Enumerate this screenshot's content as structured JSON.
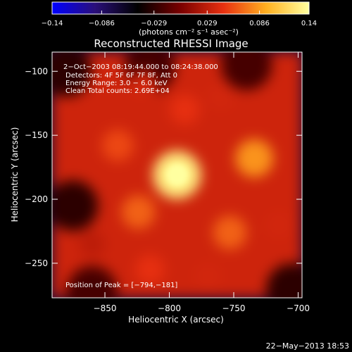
{
  "chart_data": {
    "type": "heatmap",
    "title": "Reconstructed RHESSI Image",
    "xlabel": "Heliocentric X (arcsec)",
    "ylabel": "Heliocentric Y (arcsec)",
    "xlim": [
      -891,
      -697
    ],
    "ylim": [
      -277,
      -85
    ],
    "x_ticks": [
      -850,
      -800,
      -750,
      -700
    ],
    "y_ticks": [
      -100,
      -150,
      -200,
      -250
    ],
    "x_tick_labels": [
      "−850",
      "−800",
      "−750",
      "−700"
    ],
    "y_tick_labels": [
      "−100",
      "−150",
      "−200",
      "−250"
    ],
    "colorbar": {
      "range": [
        -0.14,
        0.14
      ],
      "ticks": [
        -0.14,
        -0.086,
        -0.029,
        0.029,
        0.086,
        0.14
      ],
      "tick_labels": [
        "−0.14",
        "−0.086",
        "−0.029",
        "0.029",
        "0.086",
        "0.14"
      ],
      "units_label": "(photons cm⁻² s⁻¹ asec⁻²)",
      "colormap": [
        "#0000ff",
        "#2a0f7a",
        "#000000",
        "#7a0000",
        "#e83010",
        "#ffb020",
        "#ffffa0"
      ]
    },
    "annotations": [
      "2−Oct−2003 08:19:44.000 to 08:24:38.000",
      "Detectors: 4F 5F 6F 7F 8F, Att 0",
      "Energy Range: 3.0 − 6.0 keV",
      "Clean     Total counts: 2.69E+04"
    ],
    "peak_label": "Position of Peak = [−794,−181]",
    "peak": {
      "x": -794,
      "y": -181,
      "value": 0.14
    },
    "sources": [
      {
        "x": -794,
        "y": -181,
        "value": 0.14
      },
      {
        "x": -734,
        "y": -168,
        "value": 0.09
      },
      {
        "x": -753,
        "y": -226,
        "value": 0.07
      },
      {
        "x": -824,
        "y": -210,
        "value": 0.07
      },
      {
        "x": -840,
        "y": -158,
        "value": 0.06
      },
      {
        "x": -788,
        "y": -130,
        "value": 0.05
      },
      {
        "x": -820,
        "y": -110,
        "value": 0.04
      },
      {
        "x": -760,
        "y": -120,
        "value": 0.04
      },
      {
        "x": -770,
        "y": -260,
        "value": 0.04
      },
      {
        "x": -815,
        "y": -255,
        "value": 0.05
      },
      {
        "x": -715,
        "y": -220,
        "value": 0.04
      },
      {
        "x": -860,
        "y": -235,
        "value": 0.03
      }
    ],
    "negative_regions": [
      {
        "x": -880,
        "y": -100,
        "value": -0.03
      },
      {
        "x": -875,
        "y": -205,
        "value": -0.03
      },
      {
        "x": -705,
        "y": -270,
        "value": -0.03
      },
      {
        "x": -860,
        "y": -272,
        "value": -0.02
      },
      {
        "x": -815,
        "y": -97,
        "value": -0.02
      },
      {
        "x": -740,
        "y": -95,
        "value": -0.02
      }
    ]
  },
  "footer": {
    "timestamp": "22−May−2013 18:53"
  }
}
